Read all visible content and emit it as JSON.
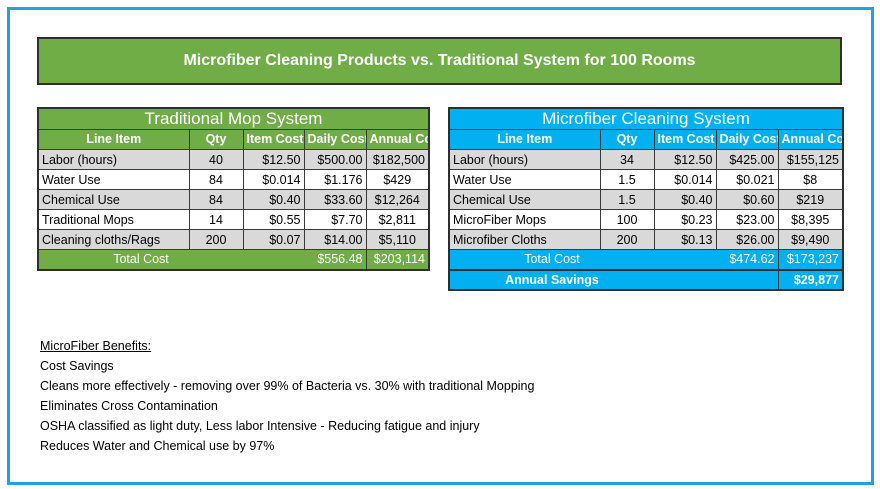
{
  "title": "Microfiber Cleaning Products vs. Traditional System for 100 Rooms",
  "traditional": {
    "caption": "Traditional Mop System",
    "headers": [
      "Line Item",
      "Qty",
      "Item Cost",
      "Daily Cost",
      "Annual Cost"
    ],
    "rows": [
      [
        "Labor (hours)",
        "40",
        "$12.50",
        "$500.00",
        "$182,500"
      ],
      [
        "Water Use",
        "84",
        "$0.014",
        "$1.176",
        "$429"
      ],
      [
        "Chemical Use",
        "84",
        "$0.40",
        "$33.60",
        "$12,264"
      ],
      [
        "Traditional Mops",
        "14",
        "$0.55",
        "$7.70",
        "$2,811"
      ],
      [
        "Cleaning cloths/Rags",
        "200",
        "$0.07",
        "$14.00",
        "$5,110"
      ]
    ],
    "total_label": "Total Cost",
    "total_daily": "$556.48",
    "total_annual": "$203,114"
  },
  "microfiber": {
    "caption": "Microfiber Cleaning System",
    "headers": [
      "Line Item",
      "Qty",
      "Item Cost",
      "Daily Cost",
      "Annual Cost"
    ],
    "rows": [
      [
        "Labor (hours)",
        "34",
        "$12.50",
        "$425.00",
        "$155,125"
      ],
      [
        "Water Use",
        "1.5",
        "$0.014",
        "$0.021",
        "$8"
      ],
      [
        "Chemical Use",
        "1.5",
        "$0.40",
        "$0.60",
        "$219"
      ],
      [
        "MicroFiber Mops",
        "100",
        "$0.23",
        "$23.00",
        "$8,395"
      ],
      [
        "Microfiber Cloths",
        "200",
        "$0.13",
        "$26.00",
        "$9,490"
      ]
    ],
    "total_label": "Total Cost",
    "total_daily": "$474.62",
    "total_annual": "$173,237",
    "savings_label": "Annual Savings",
    "savings_value": "$29,877"
  },
  "benefits": {
    "heading": "MicroFiber Benefits:",
    "items": [
      "Cost Savings",
      "Cleans more effectively - removing over 99% of Bacteria vs. 30% with traditional Mopping",
      "Eliminates Cross Contamination",
      "OSHA classified as light duty, Less labor Intensive - Reducing fatigue and injury",
      "Reduces Water and Chemical use by 97%"
    ]
  },
  "colors": {
    "frame": "#1fa3e0",
    "green": "#70ad47",
    "blue": "#00b0f0",
    "alt_row": "#d9d9d9"
  }
}
